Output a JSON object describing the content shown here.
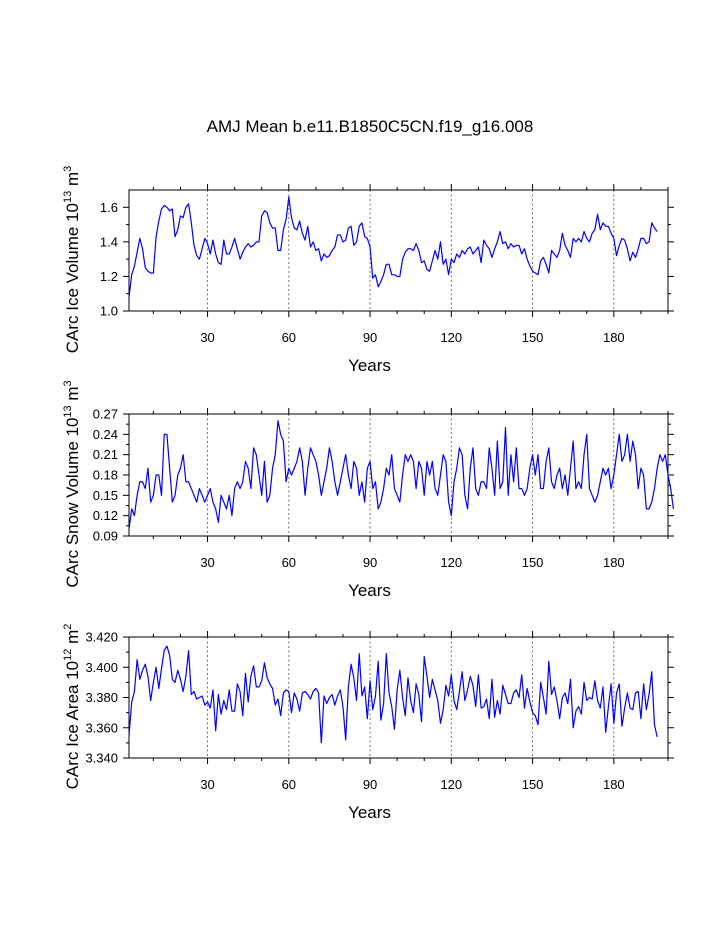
{
  "title": "AMJ Mean b.e11.B1850C5CN.f19_g16.008",
  "colors": {
    "series": "#0000ff",
    "axis": "#000000",
    "grid": "#555555"
  },
  "chart_data": [
    {
      "type": "line",
      "ylabel_main": "CArc Ice Volume 10",
      "ylabel_exp": "13",
      "ylabel_unit": " m",
      "ylabel_unit_exp": "3",
      "xlabel": "Years",
      "xlim": [
        1,
        200
      ],
      "ylim": [
        1.0,
        1.7
      ],
      "xticks": [
        30,
        60,
        90,
        120,
        150,
        180
      ],
      "xtick_labels": [
        "30",
        "60",
        "90",
        "120",
        "150",
        "180"
      ],
      "yticks": [
        1.0,
        1.2,
        1.4,
        1.6
      ],
      "ytick_labels": [
        "1.0",
        "1.2",
        "1.4",
        "1.6"
      ],
      "values": [
        1.08,
        1.21,
        1.26,
        1.34,
        1.42,
        1.36,
        1.25,
        1.23,
        1.22,
        1.22,
        1.43,
        1.52,
        1.59,
        1.61,
        1.6,
        1.58,
        1.59,
        1.43,
        1.47,
        1.55,
        1.54,
        1.6,
        1.62,
        1.51,
        1.38,
        1.32,
        1.3,
        1.36,
        1.42,
        1.39,
        1.33,
        1.41,
        1.33,
        1.28,
        1.27,
        1.41,
        1.33,
        1.33,
        1.37,
        1.42,
        1.36,
        1.3,
        1.34,
        1.37,
        1.39,
        1.37,
        1.38,
        1.4,
        1.4,
        1.55,
        1.58,
        1.57,
        1.51,
        1.48,
        1.48,
        1.35,
        1.35,
        1.47,
        1.53,
        1.66,
        1.54,
        1.48,
        1.47,
        1.52,
        1.45,
        1.41,
        1.49,
        1.37,
        1.4,
        1.35,
        1.36,
        1.29,
        1.33,
        1.31,
        1.32,
        1.35,
        1.37,
        1.44,
        1.44,
        1.4,
        1.41,
        1.48,
        1.49,
        1.38,
        1.4,
        1.49,
        1.51,
        1.43,
        1.42,
        1.37,
        1.19,
        1.21,
        1.14,
        1.17,
        1.21,
        1.27,
        1.27,
        1.21,
        1.21,
        1.2,
        1.2,
        1.3,
        1.34,
        1.36,
        1.36,
        1.35,
        1.39,
        1.35,
        1.28,
        1.29,
        1.24,
        1.23,
        1.29,
        1.35,
        1.3,
        1.4,
        1.27,
        1.3,
        1.21,
        1.3,
        1.28,
        1.33,
        1.31,
        1.35,
        1.33,
        1.36,
        1.37,
        1.33,
        1.35,
        1.37,
        1.28,
        1.41,
        1.38,
        1.36,
        1.31,
        1.36,
        1.4,
        1.46,
        1.39,
        1.4,
        1.36,
        1.39,
        1.37,
        1.38,
        1.38,
        1.33,
        1.36,
        1.3,
        1.26,
        1.23,
        1.22,
        1.21,
        1.29,
        1.31,
        1.27,
        1.22,
        1.35,
        1.33,
        1.31,
        1.35,
        1.45,
        1.38,
        1.35,
        1.31,
        1.42,
        1.4,
        1.42,
        1.4,
        1.46,
        1.42,
        1.4,
        1.45,
        1.47,
        1.56,
        1.47,
        1.51,
        1.49,
        1.49,
        1.45,
        1.42,
        1.32,
        1.38,
        1.42,
        1.41,
        1.36,
        1.29,
        1.34,
        1.31,
        1.36,
        1.42,
        1.42,
        1.39,
        1.4,
        1.51,
        1.48,
        1.46
      ]
    },
    {
      "type": "line",
      "ylabel_main": "CArc Snow Volume 10",
      "ylabel_exp": "13",
      "ylabel_unit": " m",
      "ylabel_unit_exp": "3",
      "xlabel": "Years",
      "xlim": [
        1,
        200
      ],
      "ylim": [
        0.09,
        0.27
      ],
      "xticks": [
        30,
        60,
        90,
        120,
        150,
        180
      ],
      "xtick_labels": [
        "30",
        "60",
        "90",
        "120",
        "150",
        "180"
      ],
      "yticks": [
        0.09,
        0.12,
        0.15,
        0.18,
        0.21,
        0.24,
        0.27
      ],
      "ytick_labels": [
        "0.09",
        "0.12",
        "0.15",
        "0.18",
        "0.21",
        "0.24",
        "0.27"
      ],
      "values": [
        0.1,
        0.13,
        0.12,
        0.15,
        0.17,
        0.17,
        0.16,
        0.19,
        0.14,
        0.15,
        0.18,
        0.18,
        0.15,
        0.24,
        0.24,
        0.19,
        0.14,
        0.15,
        0.18,
        0.19,
        0.21,
        0.17,
        0.17,
        0.16,
        0.15,
        0.14,
        0.16,
        0.15,
        0.14,
        0.15,
        0.16,
        0.14,
        0.13,
        0.11,
        0.15,
        0.14,
        0.13,
        0.15,
        0.12,
        0.16,
        0.17,
        0.16,
        0.17,
        0.2,
        0.19,
        0.16,
        0.22,
        0.21,
        0.18,
        0.15,
        0.2,
        0.14,
        0.15,
        0.19,
        0.21,
        0.26,
        0.24,
        0.23,
        0.17,
        0.19,
        0.18,
        0.19,
        0.2,
        0.22,
        0.2,
        0.15,
        0.19,
        0.22,
        0.21,
        0.2,
        0.18,
        0.15,
        0.17,
        0.19,
        0.22,
        0.2,
        0.17,
        0.15,
        0.17,
        0.19,
        0.21,
        0.18,
        0.16,
        0.2,
        0.19,
        0.15,
        0.17,
        0.14,
        0.19,
        0.2,
        0.16,
        0.17,
        0.13,
        0.14,
        0.16,
        0.19,
        0.18,
        0.21,
        0.16,
        0.15,
        0.14,
        0.18,
        0.21,
        0.2,
        0.21,
        0.2,
        0.16,
        0.2,
        0.19,
        0.15,
        0.2,
        0.18,
        0.2,
        0.16,
        0.15,
        0.18,
        0.21,
        0.2,
        0.14,
        0.12,
        0.17,
        0.19,
        0.22,
        0.21,
        0.15,
        0.13,
        0.19,
        0.22,
        0.16,
        0.15,
        0.17,
        0.17,
        0.16,
        0.22,
        0.19,
        0.15,
        0.23,
        0.16,
        0.17,
        0.25,
        0.15,
        0.21,
        0.17,
        0.22,
        0.16,
        0.16,
        0.15,
        0.16,
        0.19,
        0.21,
        0.18,
        0.21,
        0.16,
        0.16,
        0.2,
        0.22,
        0.17,
        0.16,
        0.18,
        0.19,
        0.16,
        0.18,
        0.15,
        0.19,
        0.23,
        0.16,
        0.17,
        0.16,
        0.21,
        0.24,
        0.16,
        0.15,
        0.14,
        0.15,
        0.17,
        0.19,
        0.18,
        0.19,
        0.16,
        0.18,
        0.21,
        0.24,
        0.2,
        0.21,
        0.24,
        0.2,
        0.23,
        0.21,
        0.16,
        0.19,
        0.18,
        0.13,
        0.13,
        0.14,
        0.16,
        0.19,
        0.21,
        0.2,
        0.21,
        0.18,
        0.16,
        0.13
      ]
    },
    {
      "type": "line",
      "ylabel_main": "CArc Ice Area 10",
      "ylabel_exp": "12",
      "ylabel_unit": " m",
      "ylabel_unit_exp": "2",
      "xlabel": "Years",
      "xlim": [
        1,
        200
      ],
      "ylim": [
        3.34,
        3.42
      ],
      "xticks": [
        30,
        60,
        90,
        120,
        150,
        180
      ],
      "xtick_labels": [
        "30",
        "60",
        "90",
        "120",
        "150",
        "180"
      ],
      "yticks": [
        3.34,
        3.36,
        3.38,
        3.4,
        3.42
      ],
      "ytick_labels": [
        "3.340",
        "3.360",
        "3.380",
        "3.400",
        "3.420"
      ],
      "values": [
        3.355,
        3.377,
        3.384,
        3.405,
        3.392,
        3.398,
        3.402,
        3.394,
        3.378,
        3.39,
        3.4,
        3.386,
        3.399,
        3.411,
        3.414,
        3.408,
        3.392,
        3.39,
        3.398,
        3.392,
        3.384,
        3.394,
        3.411,
        3.382,
        3.384,
        3.379,
        3.38,
        3.381,
        3.375,
        3.377,
        3.373,
        3.385,
        3.358,
        3.382,
        3.369,
        3.378,
        3.372,
        3.385,
        3.371,
        3.371,
        3.389,
        3.384,
        3.368,
        3.396,
        3.377,
        3.394,
        3.401,
        3.387,
        3.387,
        3.391,
        3.403,
        3.393,
        3.389,
        3.386,
        3.375,
        3.379,
        3.368,
        3.383,
        3.385,
        3.384,
        3.37,
        3.383,
        3.379,
        3.371,
        3.383,
        3.384,
        3.382,
        3.379,
        3.384,
        3.386,
        3.383,
        3.35,
        3.381,
        3.376,
        3.38,
        3.382,
        3.375,
        3.381,
        3.385,
        3.374,
        3.352,
        3.387,
        3.402,
        3.393,
        3.378,
        3.409,
        3.381,
        3.387,
        3.366,
        3.391,
        3.372,
        3.381,
        3.404,
        3.365,
        3.376,
        3.409,
        3.383,
        3.374,
        3.359,
        3.385,
        3.398,
        3.38,
        3.368,
        3.393,
        3.378,
        3.37,
        3.389,
        3.382,
        3.364,
        3.407,
        3.394,
        3.38,
        3.392,
        3.385,
        3.378,
        3.363,
        3.372,
        3.388,
        3.381,
        3.395,
        3.378,
        3.372,
        3.384,
        3.397,
        3.378,
        3.385,
        3.394,
        3.388,
        3.374,
        3.395,
        3.373,
        3.374,
        3.379,
        3.366,
        3.392,
        3.367,
        3.378,
        3.369,
        3.388,
        3.382,
        3.376,
        3.376,
        3.383,
        3.385,
        3.38,
        3.395,
        3.373,
        3.386,
        3.377,
        3.37,
        3.368,
        3.362,
        3.39,
        3.38,
        3.369,
        3.404,
        3.382,
        3.387,
        3.378,
        3.366,
        3.38,
        3.383,
        3.376,
        3.392,
        3.36,
        3.371,
        3.374,
        3.369,
        3.39,
        3.378,
        3.38,
        3.379,
        3.391,
        3.378,
        3.373,
        3.387,
        3.357,
        3.374,
        3.389,
        3.363,
        3.383,
        3.389,
        3.361,
        3.373,
        3.383,
        3.373,
        3.372,
        3.383,
        3.384,
        3.366,
        3.389,
        3.372,
        3.382,
        3.397,
        3.362,
        3.354
      ]
    }
  ]
}
